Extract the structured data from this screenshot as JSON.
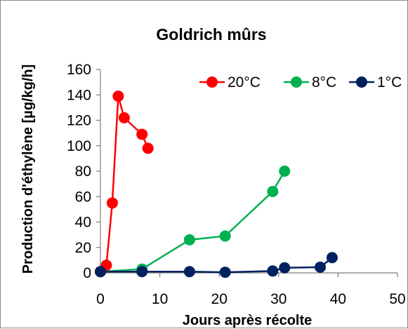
{
  "chart_data": {
    "type": "line",
    "title": "Goldrich mûrs",
    "xlabel": "Jours après récolte",
    "ylabel": "Production d'éthylène [µg/kg/h]",
    "xlim": [
      0,
      50
    ],
    "ylim": [
      0,
      160
    ],
    "x_ticks": [
      "0",
      "10",
      "20",
      "30",
      "40",
      "50"
    ],
    "y_ticks": [
      "0",
      "20",
      "40",
      "60",
      "80",
      "100",
      "120",
      "140",
      "160"
    ],
    "grid": false,
    "legend_position": "top-right",
    "series": [
      {
        "name": "20°C",
        "color": "#ff0000",
        "points": [
          [
            0,
            1
          ],
          [
            1,
            6
          ],
          [
            2,
            55
          ],
          [
            3,
            139
          ],
          [
            4,
            122
          ],
          [
            7,
            109
          ],
          [
            8,
            98
          ]
        ]
      },
      {
        "name": "8°C",
        "color": "#00b050",
        "points": [
          [
            0,
            1
          ],
          [
            7,
            3
          ],
          [
            15,
            26
          ],
          [
            21,
            29
          ],
          [
            29,
            64
          ],
          [
            31,
            80
          ]
        ]
      },
      {
        "name": "1°C",
        "color": "#002060",
        "points": [
          [
            0,
            1
          ],
          [
            7,
            1
          ],
          [
            15,
            1
          ],
          [
            21,
            0.5
          ],
          [
            29,
            1.5
          ],
          [
            31,
            4
          ],
          [
            37,
            4.5
          ],
          [
            39,
            12
          ]
        ]
      }
    ]
  }
}
